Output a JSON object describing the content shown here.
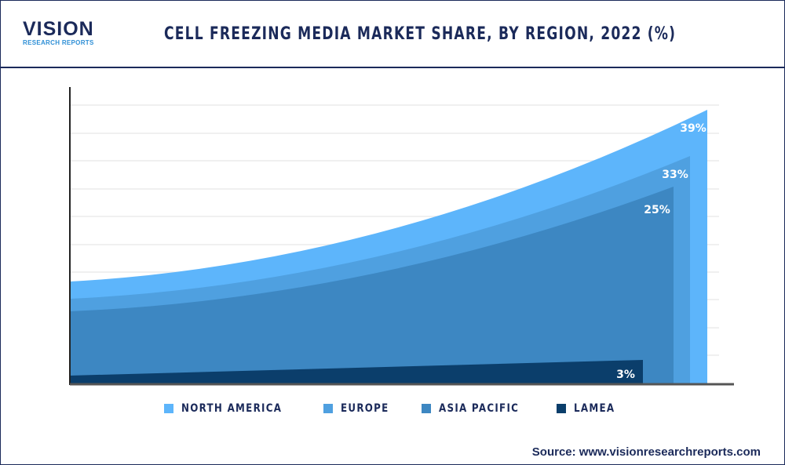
{
  "logo": {
    "line1": "VISION",
    "line2": "RESEARCH REPORTS"
  },
  "title": "CELL FREEZING MEDIA MARKET SHARE, BY REGION, 2022 (%)",
  "chart_data": {
    "type": "area",
    "title": "CELL FREEZING MEDIA MARKET SHARE, BY REGION, 2022 (%)",
    "grid": true,
    "legend_placement": "bottom",
    "series": [
      {
        "name": "NORTH AMERICA",
        "value": 39,
        "label": "39%",
        "color": "#5db5fb"
      },
      {
        "name": "EUROPE",
        "value": 33,
        "label": "33%",
        "color": "#4fa0e0"
      },
      {
        "name": "ASIA PACIFIC",
        "value": 25,
        "label": "25%",
        "color": "#3d87c2"
      },
      {
        "name": "LAMEA",
        "value": 3,
        "label": "3%",
        "color": "#0b3e6b"
      }
    ]
  },
  "source": "Source: www.visionresearchreports.com"
}
